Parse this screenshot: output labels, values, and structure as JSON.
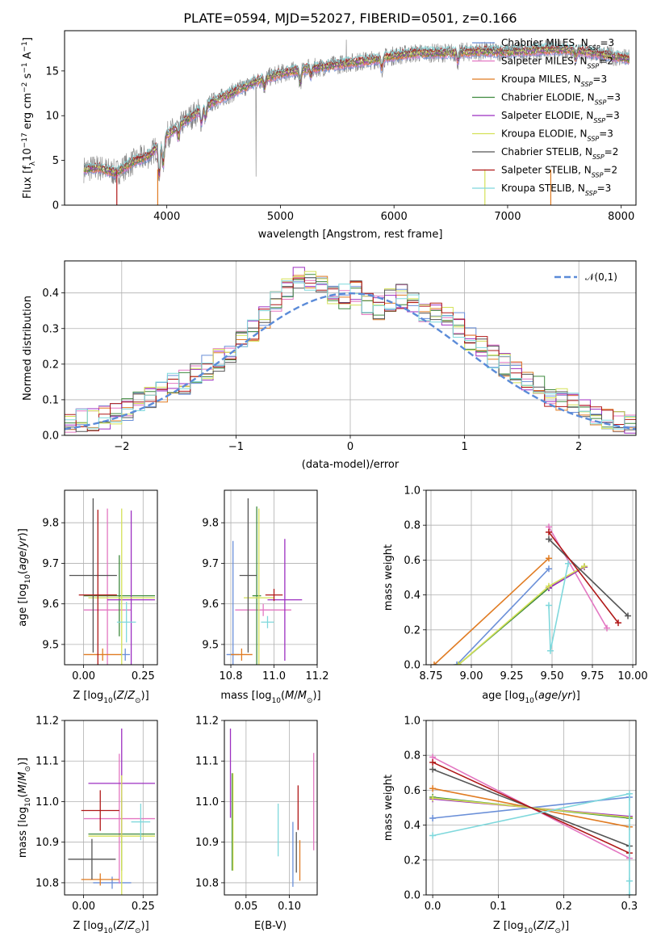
{
  "figure": {
    "title": "PLATE=0594, MJD=52027, FIBERID=0501, z=0.166"
  },
  "colors": {
    "Chabrier MILES": "#6a8fd8",
    "Salpeter MILES": "#e377c2",
    "Kroupa MILES": "#e07b22",
    "Chabrier ELODIE": "#3e8a3e",
    "Salpeter ELODIE": "#9c2fc0",
    "Kroupa ELODIE": "#d4e157",
    "Chabrier STELIB": "#555555",
    "Salpeter STELIB": "#b01818",
    "Kroupa STELIB": "#7fd8dc",
    "data": "#808080"
  },
  "chart_data": [
    {
      "id": "spectrum",
      "type": "line",
      "title": "PLATE=0594, MJD=52027, FIBERID=0501, z=0.166",
      "xlabel": "wavelength [Angstrom, rest frame]",
      "ylabel": "Flux [f_λ10^-17 erg cm^-2 s^-1 A^-1]",
      "xlim": [
        3100,
        8130
      ],
      "ylim": [
        0,
        19.5
      ],
      "xticks": [
        4000,
        5000,
        6000,
        7000,
        8000
      ],
      "yticks": [
        0,
        5,
        10,
        15
      ],
      "grid": false,
      "legend_position": "top-right",
      "legend": [
        {
          "name": "Chabrier MILES",
          "nssp": "3"
        },
        {
          "name": "Salpeter MILES",
          "nssp": "2"
        },
        {
          "name": "Kroupa MILES",
          "nssp": "3"
        },
        {
          "name": "Chabrier ELODIE",
          "nssp": "3"
        },
        {
          "name": "Salpeter ELODIE",
          "nssp": "3"
        },
        {
          "name": "Kroupa ELODIE",
          "nssp": "3"
        },
        {
          "name": "Chabrier STELIB",
          "nssp": "2"
        },
        {
          "name": "Salpeter STELIB",
          "nssp": "2"
        },
        {
          "name": "Kroupa STELIB",
          "nssp": "3"
        }
      ],
      "continuum": {
        "x": [
          3270,
          3400,
          3550,
          3700,
          3850,
          4000,
          4200,
          4400,
          4600,
          4800,
          5000,
          5200,
          5400,
          5600,
          5800,
          6000,
          6200,
          6400,
          6600,
          6800,
          7000,
          7200,
          7400,
          7600,
          7800,
          8000,
          8080
        ],
        "y": [
          4.0,
          4.2,
          3.6,
          4.8,
          5.6,
          7.8,
          9.8,
          11.5,
          12.7,
          13.9,
          14.7,
          15.2,
          15.5,
          15.9,
          16.2,
          16.7,
          17.0,
          17.0,
          17.1,
          17.2,
          17.1,
          17.3,
          17.4,
          17.3,
          16.9,
          16.5,
          16.3
        ]
      }
    },
    {
      "id": "residuals",
      "type": "bar",
      "xlabel": "(data-model)/error",
      "ylabel": "Normed distribution",
      "xlim": [
        -2.5,
        2.5
      ],
      "ylim": [
        0,
        0.49
      ],
      "xticks": [
        -2,
        -1,
        0,
        1,
        2
      ],
      "yticks": [
        0.0,
        0.1,
        0.2,
        0.3,
        0.4
      ],
      "grid": true,
      "legend_position": "top-right",
      "legend": [
        "𝒩(0,1)"
      ],
      "bin_width": 0.1,
      "base": [
        0.04,
        0.04,
        0.045,
        0.05,
        0.06,
        0.07,
        0.09,
        0.11,
        0.12,
        0.14,
        0.15,
        0.17,
        0.19,
        0.21,
        0.24,
        0.27,
        0.29,
        0.33,
        0.37,
        0.41,
        0.44,
        0.43,
        0.42,
        0.4,
        0.39,
        0.4,
        0.37,
        0.36,
        0.38,
        0.39,
        0.37,
        0.35,
        0.34,
        0.33,
        0.31,
        0.27,
        0.25,
        0.22,
        0.2,
        0.18,
        0.16,
        0.14,
        0.11,
        0.1,
        0.085,
        0.07,
        0.06,
        0.045,
        0.035,
        0.03
      ]
    },
    {
      "id": "age-vs-Z",
      "type": "scatter",
      "xlabel": "Z [log10(Z/Z⊙)]",
      "ylabel": "age  [log10(age/yr)]",
      "xlim": [
        -0.08,
        0.31
      ],
      "ylim": [
        9.45,
        9.88
      ],
      "xticks": [
        0.0,
        0.25
      ],
      "yticks": [
        9.5,
        9.6,
        9.7,
        9.8
      ],
      "grid": true,
      "points": [
        {
          "name": "Chabrier MILES",
          "x": 0.175,
          "y": 9.475,
          "xerr": 0.02,
          "yerr": 0.015
        },
        {
          "name": "Salpeter MILES",
          "x": 0.1,
          "y": 9.585,
          "xerr": 0.1,
          "yerr": 0.25
        },
        {
          "name": "Kroupa MILES",
          "x": 0.08,
          "y": 9.475,
          "xerr": 0.08,
          "yerr": 0.015
        },
        {
          "name": "Chabrier ELODIE",
          "x": 0.15,
          "y": 9.62,
          "xerr": 0.15,
          "yerr": 0.1
        },
        {
          "name": "Salpeter ELODIE",
          "x": 0.2,
          "y": 9.61,
          "xerr": 0.1,
          "yerr": 0.22
        },
        {
          "name": "Kroupa ELODIE",
          "x": 0.16,
          "y": 9.615,
          "xerr": 0.14,
          "yerr": 0.22
        },
        {
          "name": "Chabrier STELIB",
          "x": 0.04,
          "y": 9.67,
          "xerr": 0.1,
          "yerr": 0.19
        },
        {
          "name": "Salpeter STELIB",
          "x": 0.06,
          "y": 9.622,
          "xerr": 0.08,
          "yerr": 0.21
        },
        {
          "name": "Kroupa STELIB",
          "x": 0.18,
          "y": 9.555,
          "xerr": 0.04,
          "yerr": 0.05
        }
      ]
    },
    {
      "id": "age-vs-mass",
      "type": "scatter",
      "xlabel": "mass [log10(M/M⊙)]",
      "ylabel": "",
      "xlim": [
        10.77,
        11.2
      ],
      "ylim": [
        9.45,
        9.88
      ],
      "xticks": [
        10.8,
        11.0,
        11.2
      ],
      "yticks": [
        9.5,
        9.6,
        9.7,
        9.8
      ],
      "grid": true,
      "points": [
        {
          "name": "Chabrier MILES",
          "x": 10.81,
          "y": 9.475,
          "xerr": 0.03,
          "yerr": 0.28
        },
        {
          "name": "Salpeter MILES",
          "x": 10.95,
          "y": 9.585,
          "xerr": 0.13,
          "yerr": 0.015
        },
        {
          "name": "Kroupa MILES",
          "x": 10.85,
          "y": 9.475,
          "xerr": 0.05,
          "yerr": 0.015
        },
        {
          "name": "Chabrier ELODIE",
          "x": 10.92,
          "y": 9.62,
          "xerr": 0.02,
          "yerr": 0.22
        },
        {
          "name": "Salpeter ELODIE",
          "x": 11.05,
          "y": 9.61,
          "xerr": 0.08,
          "yerr": 0.15
        },
        {
          "name": "Kroupa ELODIE",
          "x": 10.93,
          "y": 9.615,
          "xerr": 0.07,
          "yerr": 0.22
        },
        {
          "name": "Chabrier STELIB",
          "x": 10.88,
          "y": 9.67,
          "xerr": 0.04,
          "yerr": 0.19
        },
        {
          "name": "Salpeter STELIB",
          "x": 11.0,
          "y": 9.622,
          "xerr": 0.04,
          "yerr": 0.015
        },
        {
          "name": "Kroupa STELIB",
          "x": 10.97,
          "y": 9.555,
          "xerr": 0.03,
          "yerr": 0.015
        }
      ]
    },
    {
      "id": "weight-vs-age",
      "type": "line",
      "xlabel": "age  [log10(age/yr)]",
      "ylabel": "mass weight",
      "xlim": [
        8.72,
        10.02
      ],
      "ylim": [
        0.0,
        1.0
      ],
      "xticks": [
        8.75,
        9.0,
        9.25,
        9.5,
        9.75,
        10.0
      ],
      "yticks": [
        0.0,
        0.2,
        0.4,
        0.6,
        0.8,
        1.0
      ],
      "grid": true,
      "series": [
        {
          "name": "Chabrier MILES",
          "x": [
            8.91,
            9.48
          ],
          "y": [
            0.0,
            0.55
          ]
        },
        {
          "name": "Salpeter MILES",
          "x": [
            9.48,
            9.84
          ],
          "y": [
            0.79,
            0.21
          ]
        },
        {
          "name": "Kroupa MILES",
          "x": [
            8.77,
            9.48
          ],
          "y": [
            0.0,
            0.61
          ]
        },
        {
          "name": "Chabrier ELODIE",
          "x": [
            8.92,
            9.48,
            9.7
          ],
          "y": [
            0.0,
            0.44,
            0.56
          ]
        },
        {
          "name": "Salpeter ELODIE",
          "x": [
            9.48,
            9.7
          ],
          "y": [
            0.44,
            0.56
          ]
        },
        {
          "name": "Kroupa ELODIE",
          "x": [
            8.92,
            9.48,
            9.7
          ],
          "y": [
            0.0,
            0.45,
            0.565
          ]
        },
        {
          "name": "Chabrier STELIB",
          "x": [
            9.48,
            9.97
          ],
          "y": [
            0.72,
            0.28
          ]
        },
        {
          "name": "Salpeter STELIB",
          "x": [
            9.48,
            9.91
          ],
          "y": [
            0.76,
            0.24
          ]
        },
        {
          "name": "Kroupa STELIB",
          "x": [
            9.48,
            9.49,
            9.6
          ],
          "y": [
            0.34,
            0.08,
            0.58
          ]
        }
      ]
    },
    {
      "id": "mass-vs-Z",
      "type": "scatter",
      "xlabel": "Z [log10(Z/Z⊙)]",
      "ylabel": "mass [log10(M/M⊙)]",
      "xlim": [
        -0.08,
        0.31
      ],
      "ylim": [
        10.77,
        11.2
      ],
      "xticks": [
        0.0,
        0.25
      ],
      "yticks": [
        10.8,
        10.9,
        11.0,
        11.1,
        11.2
      ],
      "grid": true,
      "points": [
        {
          "name": "Chabrier MILES",
          "x": 0.12,
          "y": 10.8,
          "xerr": 0.08,
          "yerr": 0.015
        },
        {
          "name": "Salpeter MILES",
          "x": 0.15,
          "y": 10.958,
          "xerr": 0.15,
          "yerr": 0.16
        },
        {
          "name": "Kroupa MILES",
          "x": 0.07,
          "y": 10.808,
          "xerr": 0.08,
          "yerr": 0.015
        },
        {
          "name": "Chabrier ELODIE",
          "x": 0.16,
          "y": 10.92,
          "xerr": 0.14,
          "yerr": 0.09
        },
        {
          "name": "Salpeter ELODIE",
          "x": 0.16,
          "y": 11.045,
          "xerr": 0.14,
          "yerr": 0.135
        },
        {
          "name": "Kroupa ELODIE",
          "x": 0.16,
          "y": 10.915,
          "xerr": 0.14,
          "yerr": 0.15
        },
        {
          "name": "Chabrier STELIB",
          "x": 0.035,
          "y": 10.858,
          "xerr": 0.1,
          "yerr": 0.05
        },
        {
          "name": "Salpeter STELIB",
          "x": 0.07,
          "y": 10.978,
          "xerr": 0.08,
          "yerr": 0.05
        },
        {
          "name": "Kroupa STELIB",
          "x": 0.24,
          "y": 10.95,
          "xerr": 0.04,
          "yerr": 0.045
        }
      ]
    },
    {
      "id": "mass-vs-EBV",
      "type": "scatter",
      "xlabel": "E(B-V)",
      "ylabel": "",
      "xlim": [
        0.025,
        0.132
      ],
      "ylim": [
        10.77,
        11.2
      ],
      "xticks": [
        0.05,
        0.1
      ],
      "yticks": [
        10.8,
        10.9,
        11.0,
        11.1,
        11.2
      ],
      "grid": true,
      "points": [
        {
          "name": "Chabrier MILES",
          "x": 0.104,
          "y": 10.87,
          "xerr": 0.0,
          "yerr": 0.08
        },
        {
          "name": "Salpeter MILES",
          "x": 0.128,
          "y": 11.0,
          "xerr": 0.0,
          "yerr": 0.12
        },
        {
          "name": "Kroupa MILES",
          "x": 0.112,
          "y": 10.855,
          "xerr": 0.0,
          "yerr": 0.05
        },
        {
          "name": "Chabrier ELODIE",
          "x": 0.034,
          "y": 10.95,
          "xerr": 0.0,
          "yerr": 0.12
        },
        {
          "name": "Salpeter ELODIE",
          "x": 0.032,
          "y": 11.07,
          "xerr": 0.0,
          "yerr": 0.11
        },
        {
          "name": "Kroupa ELODIE",
          "x": 0.035,
          "y": 10.95,
          "xerr": 0.0,
          "yerr": 0.12
        },
        {
          "name": "Chabrier STELIB",
          "x": 0.108,
          "y": 10.875,
          "xerr": 0.0,
          "yerr": 0.05
        },
        {
          "name": "Salpeter STELIB",
          "x": 0.11,
          "y": 10.985,
          "xerr": 0.0,
          "yerr": 0.055
        },
        {
          "name": "Kroupa STELIB",
          "x": 0.087,
          "y": 10.93,
          "xerr": 0.0,
          "yerr": 0.065
        }
      ]
    },
    {
      "id": "weight-vs-Z",
      "type": "line",
      "xlabel": "Z [log10(Z/Z⊙)]",
      "ylabel": "mass weight",
      "xlim": [
        -0.01,
        0.31
      ],
      "ylim": [
        0.0,
        1.0
      ],
      "xticks": [
        0.0,
        0.1,
        0.2,
        0.3
      ],
      "yticks": [
        0.0,
        0.2,
        0.4,
        0.6,
        0.8,
        1.0
      ],
      "grid": true,
      "series": [
        {
          "name": "Chabrier MILES",
          "x": [
            0.0,
            0.3
          ],
          "y": [
            0.44,
            0.56
          ]
        },
        {
          "name": "Salpeter MILES",
          "x": [
            0.0,
            0.3
          ],
          "y": [
            0.79,
            0.21
          ]
        },
        {
          "name": "Kroupa MILES",
          "x": [
            0.0,
            0.3
          ],
          "y": [
            0.61,
            0.39
          ]
        },
        {
          "name": "Chabrier ELODIE",
          "x": [
            0.0,
            0.3
          ],
          "y": [
            0.56,
            0.44
          ]
        },
        {
          "name": "Salpeter ELODIE",
          "x": [
            0.0,
            0.3
          ],
          "y": [
            0.55,
            0.45
          ]
        },
        {
          "name": "Kroupa ELODIE",
          "x": [
            0.0,
            0.3
          ],
          "y": [
            0.555,
            0.445
          ]
        },
        {
          "name": "Chabrier STELIB",
          "x": [
            0.0,
            0.3
          ],
          "y": [
            0.72,
            0.28
          ]
        },
        {
          "name": "Salpeter STELIB",
          "x": [
            0.0,
            0.3
          ],
          "y": [
            0.76,
            0.24
          ]
        },
        {
          "name": "Kroupa STELIB",
          "x": [
            0.0,
            0.3,
            0.3,
            0.3
          ],
          "y": [
            0.34,
            0.58,
            0.08,
            0.0
          ]
        }
      ]
    }
  ]
}
